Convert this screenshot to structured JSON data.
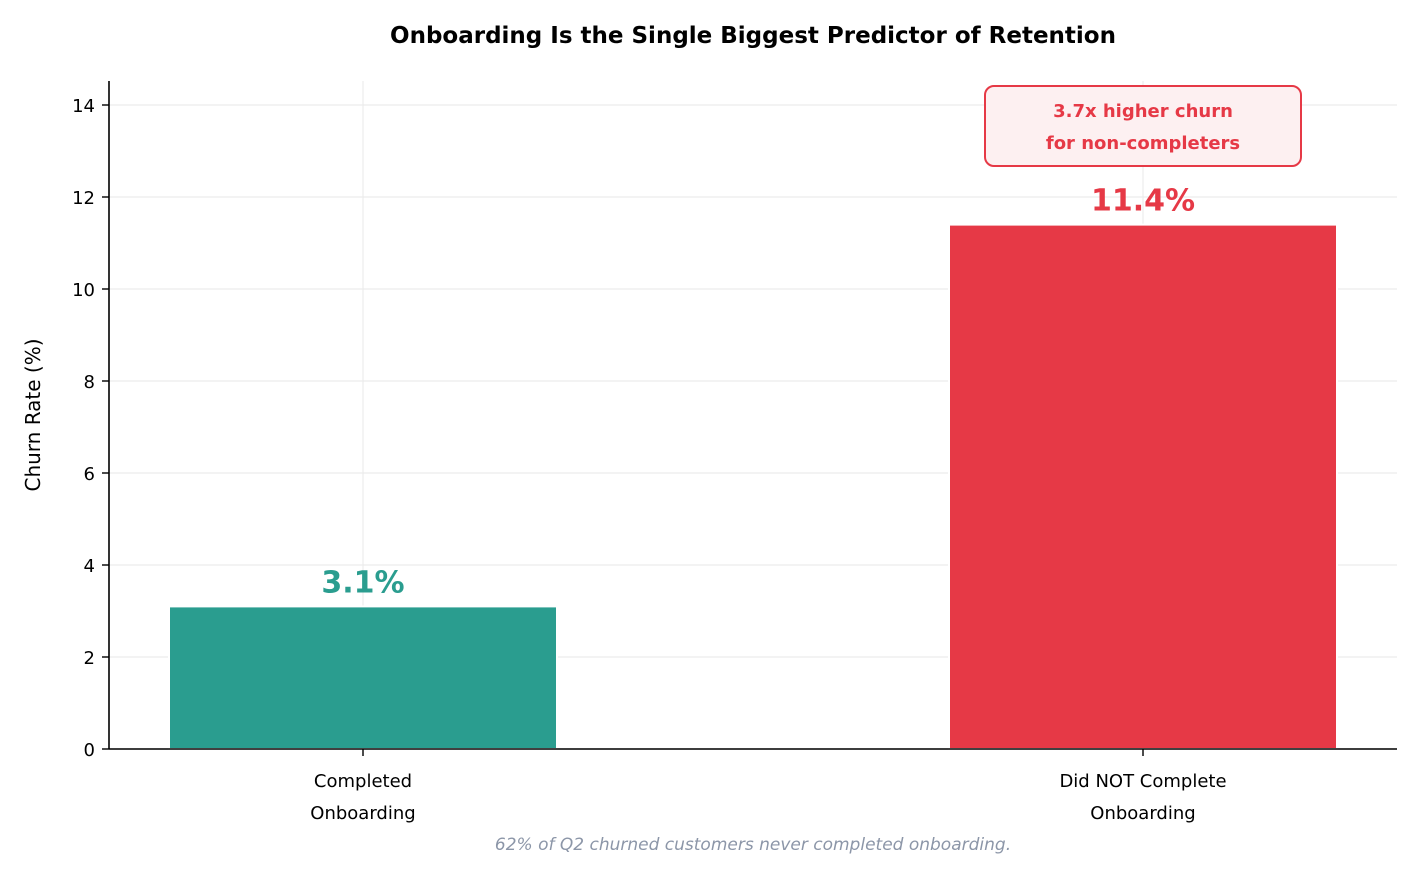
{
  "chart_data": {
    "type": "bar",
    "title": "Onboarding Is the Single Biggest Predictor of Retention",
    "xlabel": "",
    "ylabel": "Churn Rate (%)",
    "ylim": [
      0,
      14.5
    ],
    "yticks": [
      "0",
      "2",
      "4",
      "6",
      "8",
      "10",
      "12",
      "14"
    ],
    "grid": true,
    "categories": [
      [
        "Completed",
        "Onboarding"
      ],
      [
        "Did NOT Complete",
        "Onboarding"
      ]
    ],
    "values": [
      3.1,
      11.4
    ],
    "value_labels": [
      "3.1%",
      "11.4%"
    ],
    "colors": [
      "#2a9d8f",
      "#e63946"
    ],
    "annotation": {
      "lines": [
        "3.7x higher churn",
        "for non-completers"
      ],
      "color": "#e63946",
      "background": "#fdf0f1"
    },
    "footnote": "62% of Q2 churned customers never completed onboarding."
  }
}
